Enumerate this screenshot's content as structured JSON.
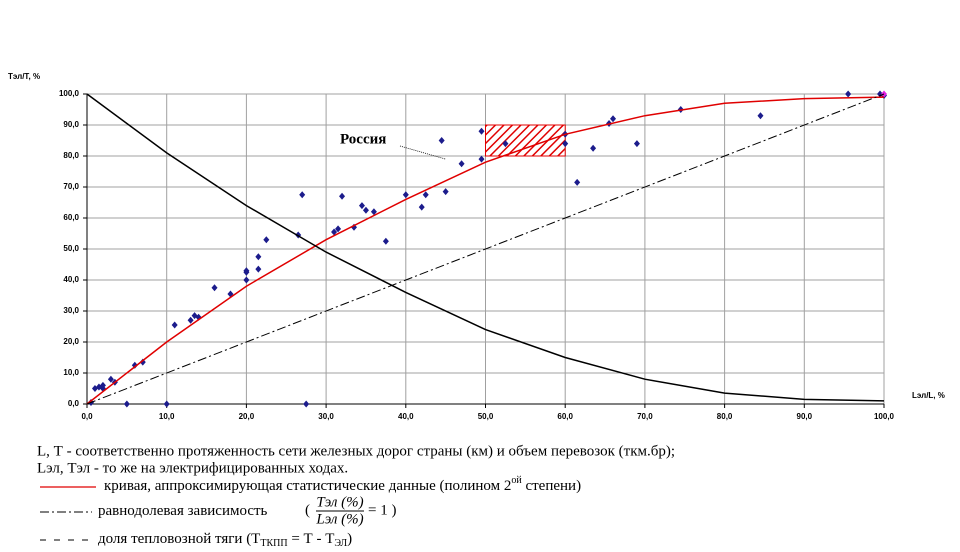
{
  "chart_data": {
    "type": "scatter",
    "y_axis_title": "Тэл/Т, %",
    "x_axis_title": "Lэл/L, %",
    "xlim": [
      0,
      100
    ],
    "ylim": [
      0,
      100
    ],
    "xticks": [
      {
        "value": 0,
        "label": "0,0"
      },
      {
        "value": 10,
        "label": "10,0"
      },
      {
        "value": 20,
        "label": "20,0"
      },
      {
        "value": 30,
        "label": "30,0"
      },
      {
        "value": 40,
        "label": "40,0"
      },
      {
        "value": 50,
        "label": "50,0"
      },
      {
        "value": 60,
        "label": "60,0"
      },
      {
        "value": 70,
        "label": "70,0"
      },
      {
        "value": 80,
        "label": "80,0"
      },
      {
        "value": 90,
        "label": "90,0"
      },
      {
        "value": 100,
        "label": "100,0"
      }
    ],
    "yticks": [
      {
        "value": 0,
        "label": "0,0"
      },
      {
        "value": 10,
        "label": "10,0"
      },
      {
        "value": 20,
        "label": "20,0"
      },
      {
        "value": 30,
        "label": "30,0"
      },
      {
        "value": 40,
        "label": "40,0"
      },
      {
        "value": 50,
        "label": "50,0"
      },
      {
        "value": 60,
        "label": "60,0"
      },
      {
        "value": 70,
        "label": "70,0"
      },
      {
        "value": 80,
        "label": "80,0"
      },
      {
        "value": 90,
        "label": "90,0"
      },
      {
        "value": 100,
        "label": "100,0"
      }
    ],
    "grid": true,
    "series": [
      {
        "style": "markers",
        "color": "#1c1c8c",
        "x": [
          0.5,
          1,
          1.5,
          2,
          2,
          3,
          3.5,
          5,
          6,
          7,
          10,
          11,
          13,
          13.5,
          14,
          16,
          18,
          20,
          20,
          20,
          21.5,
          21.5,
          22.5,
          26.5,
          27,
          27.5,
          31,
          31.5,
          32,
          33.5,
          34.5,
          35,
          36,
          37.5,
          40,
          42,
          42.5,
          44.5,
          45,
          47,
          49.5,
          49.5,
          52.5,
          60,
          60,
          61.5,
          63.5,
          65.5,
          66,
          69,
          74.5,
          84.5,
          95.5,
          99.5,
          100
        ],
        "values": [
          0.5,
          5,
          5.5,
          6,
          5,
          8,
          7,
          0,
          12.5,
          13.5,
          0,
          25.5,
          27,
          28.5,
          28,
          37.5,
          35.5,
          40,
          42.5,
          43,
          47.5,
          43.5,
          53,
          54.5,
          67.5,
          0,
          55.5,
          56.5,
          67,
          57,
          64,
          62.5,
          62,
          52.5,
          67.5,
          63.5,
          67.5,
          85,
          68.5,
          77.5,
          88,
          79,
          84,
          84,
          87,
          71.5,
          82.5,
          90.5,
          92,
          84,
          95,
          93,
          100,
          100,
          99.5
        ]
      },
      {
        "style": "markers",
        "color": "#e020e0",
        "x": [
          100
        ],
        "values": [
          100
        ]
      },
      {
        "style": "line",
        "color": "#e00000",
        "name": "кривая, аппроксимирующая статистические данные  (полином 2",
        "name_sup": "ой",
        "name_end": " степени)",
        "x": [
          0,
          10,
          20,
          30,
          40,
          50,
          60,
          70,
          80,
          90,
          100
        ],
        "values": [
          0,
          20,
          38,
          53,
          66,
          78,
          87,
          93,
          97,
          98.5,
          99
        ]
      },
      {
        "style": "dashdot",
        "color": "#000000",
        "name": "равнодолевая зависимость",
        "formula": {
          "open": "(",
          "numerator": "Tэл (%)",
          "denominator": "Lэл (%)",
          "rhs": "= 1 )"
        },
        "x": [
          0,
          100
        ],
        "values": [
          0,
          100
        ]
      },
      {
        "style": "curve",
        "color": "#000000",
        "name": "доля тепловозной тяги (Т",
        "name_sub": "ТКПП",
        "name_mid": " = Т - Т",
        "name_sub2": "ЭЛ",
        "name_end": ")",
        "x": [
          0,
          10,
          20,
          30,
          40,
          50,
          60,
          70,
          80,
          90,
          100
        ],
        "values": [
          100,
          81,
          64,
          49,
          36,
          24,
          15,
          8,
          3.5,
          1.5,
          1
        ]
      }
    ],
    "highlight": {
      "x": [
        50,
        60
      ],
      "y": [
        80,
        90
      ]
    },
    "annotation": {
      "text": "Россия",
      "x": 45,
      "y": 79
    },
    "notes": [
      "L, Т  -  соответственно протяженность сети железных дорог страны (км) и объем перевозок (ткм.бр);",
      "Lэл, Тэл  - то же на электрифицированных ходах."
    ]
  }
}
